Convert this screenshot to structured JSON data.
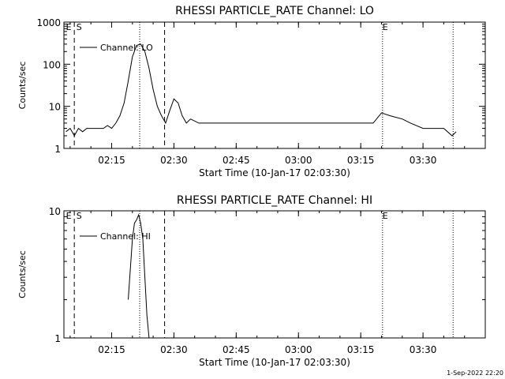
{
  "footer": {
    "timestamp": "1-Sep-2022 22:20"
  },
  "chart_data": [
    {
      "type": "line",
      "title": "RHESSI PARTICLE_RATE Channel: LO",
      "xlabel": "Start Time (10-Jan-17 02:03:30)",
      "ylabel": "Counts/sec",
      "yscale": "log",
      "xlim": [
        "02:03:30",
        "03:45:00"
      ],
      "ylim": [
        1,
        1000
      ],
      "x_ticks": [
        "02:15",
        "02:30",
        "02:45",
        "03:00",
        "03:15",
        "03:30"
      ],
      "y_ticks": [
        {
          "value": 1,
          "label": "1"
        },
        {
          "value": 10,
          "label": "10"
        },
        {
          "value": 100,
          "label": "100"
        },
        {
          "value": 1000,
          "label": "1000"
        }
      ],
      "legend": {
        "placement": "top-left",
        "label": "Channel: LO"
      },
      "markers": [
        {
          "time": "02:06:00",
          "style": "dashed"
        },
        {
          "time": "02:21:45",
          "style": "dotted"
        },
        {
          "time": "02:27:45",
          "style": "dashed"
        },
        {
          "time": "03:20:15",
          "style": "dotted"
        },
        {
          "time": "03:37:15",
          "style": "dotted"
        }
      ],
      "marker_labels": [
        {
          "time": "02:04:00",
          "label": "E"
        },
        {
          "time": "02:06:30",
          "label": "S"
        },
        {
          "time": "03:20:15",
          "label": "E"
        }
      ],
      "series": [
        {
          "x": [
            "02:04:00",
            "02:05:00",
            "02:06:00",
            "02:07:00",
            "02:08:00",
            "02:09:00",
            "02:10:00",
            "02:11:00",
            "02:12:00",
            "02:13:00",
            "02:14:00",
            "02:15:00",
            "02:16:00",
            "02:17:00",
            "02:18:00",
            "02:19:00",
            "02:20:00",
            "02:21:00",
            "02:22:00",
            "02:23:00",
            "02:24:00",
            "02:25:00",
            "02:26:00",
            "02:27:00",
            "02:28:00",
            "02:29:00",
            "02:30:00",
            "02:31:00",
            "02:32:00",
            "02:33:00",
            "02:34:00",
            "02:36:00",
            "02:40:00",
            "02:45:00",
            "02:50:00",
            "02:55:00",
            "03:00:00",
            "03:05:00",
            "03:10:00",
            "03:15:00",
            "03:18:00",
            "03:20:00",
            "03:22:00",
            "03:25:00",
            "03:27:00",
            "03:30:00",
            "03:33:00",
            "03:35:00",
            "03:37:00",
            "03:38:00"
          ],
          "y": [
            2.5,
            3,
            2,
            3,
            2.5,
            3,
            3,
            3,
            3,
            3,
            3.5,
            3,
            4,
            6,
            12,
            40,
            150,
            280,
            300,
            200,
            80,
            25,
            10,
            6,
            4,
            8,
            15,
            12,
            6,
            4,
            5,
            4,
            4,
            4,
            4,
            4,
            4,
            4,
            4,
            4,
            4,
            7,
            6,
            5,
            4,
            3,
            3,
            3,
            2,
            2.5
          ]
        }
      ]
    },
    {
      "type": "line",
      "title": "RHESSI PARTICLE_RATE Channel: HI",
      "xlabel": "Start Time (10-Jan-17 02:03:30)",
      "ylabel": "Counts/sec",
      "yscale": "log",
      "xlim": [
        "02:03:30",
        "03:45:00"
      ],
      "ylim": [
        1,
        10
      ],
      "x_ticks": [
        "02:15",
        "02:30",
        "02:45",
        "03:00",
        "03:15",
        "03:30"
      ],
      "y_ticks": [
        {
          "value": 1,
          "label": "1"
        },
        {
          "value": 10,
          "label": "10"
        }
      ],
      "legend": {
        "placement": "top-left",
        "label": "Channel: HI"
      },
      "markers": [
        {
          "time": "02:06:00",
          "style": "dashed"
        },
        {
          "time": "02:21:45",
          "style": "dotted"
        },
        {
          "time": "02:27:45",
          "style": "dashed"
        },
        {
          "time": "03:20:15",
          "style": "dotted"
        },
        {
          "time": "03:37:15",
          "style": "dotted"
        }
      ],
      "marker_labels": [
        {
          "time": "02:04:00",
          "label": "E"
        },
        {
          "time": "02:06:30",
          "label": "S"
        },
        {
          "time": "03:20:15",
          "label": "E"
        }
      ],
      "series": [
        {
          "x": [
            "02:19:00",
            "02:19:30",
            "02:20:00",
            "02:20:30",
            "02:21:00",
            "02:21:30",
            "02:22:00",
            "02:22:30",
            "02:23:00",
            "02:23:30",
            "02:24:00"
          ],
          "y": [
            2.0,
            3.5,
            6.0,
            8.0,
            8.5,
            9.3,
            8.0,
            6.0,
            3.0,
            1.5,
            1.0
          ]
        }
      ]
    }
  ]
}
